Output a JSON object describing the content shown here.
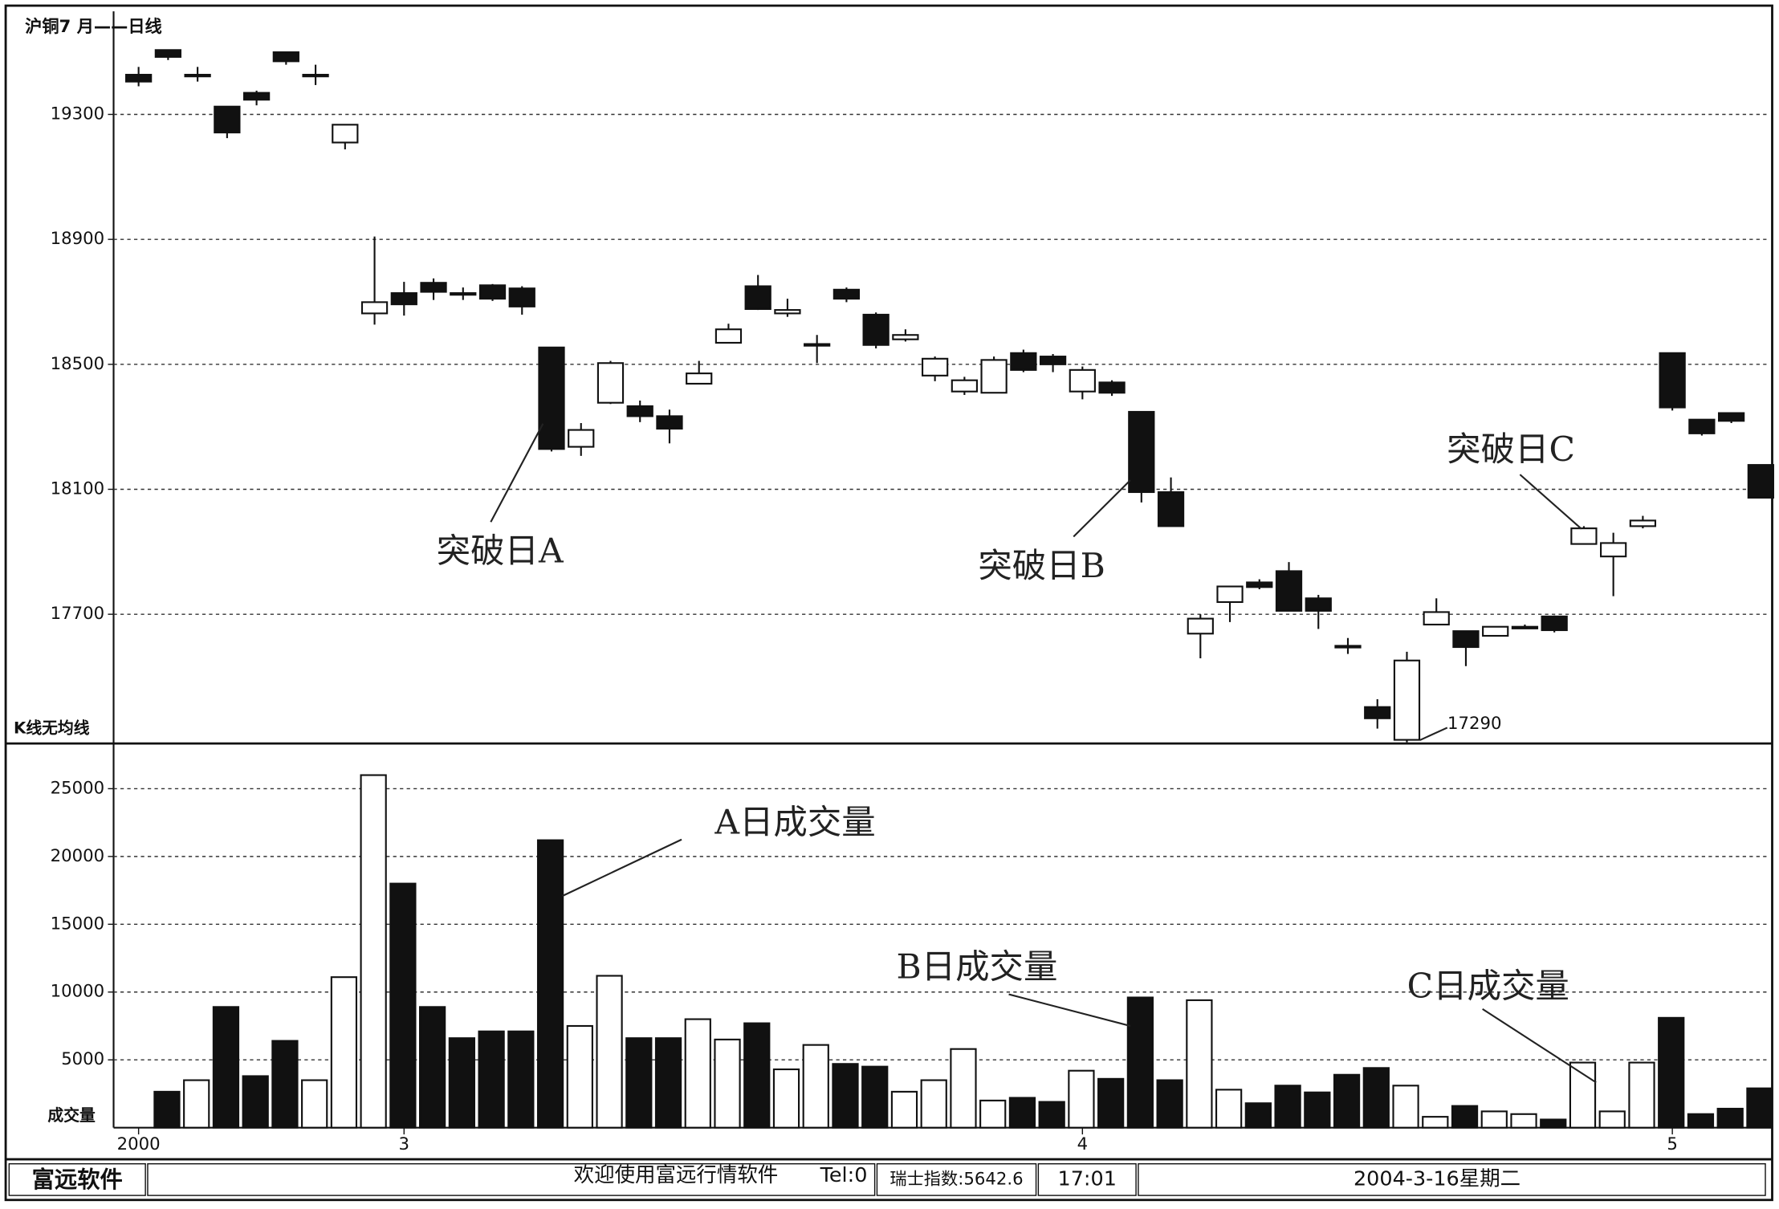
{
  "chart_data": [
    {
      "type": "candlestick",
      "title": "沪铜7 月——日线",
      "label": "K线无均线",
      "open": [
        19427,
        19506,
        19427,
        19325,
        19369,
        19499,
        19427,
        19210,
        18663,
        18728,
        18761,
        18728,
        18753,
        18743,
        18554,
        18236,
        18377,
        18366,
        18334,
        18438,
        18569,
        18750,
        18663,
        18565,
        18739,
        18659,
        18580,
        18464,
        18413,
        18409,
        18536,
        18525,
        18413,
        18442,
        18348,
        18091,
        17638,
        17739,
        17802,
        17838,
        17751,
        17599,
        17403,
        17298,
        17667,
        17646,
        17631,
        17660,
        17693,
        17925,
        17885,
        17982,
        18536,
        18323,
        18344,
        18178
      ],
      "high": [
        19452,
        19506,
        19452,
        19325,
        19376,
        19499,
        19459,
        19267,
        18909,
        18764,
        18775,
        18746,
        18757,
        18750,
        18554,
        18312,
        18511,
        18384,
        18355,
        18511,
        18630,
        18786,
        18710,
        18594,
        18746,
        18666,
        18612,
        18525,
        18460,
        18525,
        18547,
        18533,
        18493,
        18449,
        18348,
        18138,
        17700,
        17789,
        17812,
        17867,
        17762,
        17624,
        17428,
        17580,
        17751,
        17646,
        17660,
        17667,
        17696,
        17982,
        17961,
        18015,
        18536,
        18323,
        18344,
        18178
      ],
      "low": [
        19390,
        19474,
        19405,
        19224,
        19329,
        19459,
        19394,
        19188,
        18627,
        18656,
        18706,
        18706,
        18703,
        18659,
        18221,
        18207,
        18373,
        18315,
        18247,
        18438,
        18569,
        18674,
        18652,
        18504,
        18699,
        18551,
        18573,
        18446,
        18402,
        18409,
        18475,
        18475,
        18388,
        18399,
        18058,
        17982,
        17559,
        17675,
        17780,
        17711,
        17653,
        17573,
        17334,
        17290,
        17667,
        17534,
        17631,
        17653,
        17642,
        17925,
        17758,
        17975,
        18352,
        18272,
        18312,
        18073
      ],
      "close": [
        19405,
        19484,
        19427,
        19242,
        19347,
        19470,
        19427,
        19267,
        18699,
        18692,
        18732,
        18724,
        18710,
        18685,
        18229,
        18290,
        18504,
        18334,
        18294,
        18471,
        18612,
        18677,
        18674,
        18565,
        18710,
        18562,
        18594,
        18518,
        18449,
        18514,
        18482,
        18500,
        18482,
        18409,
        18091,
        17982,
        17686,
        17789,
        17787,
        17711,
        17711,
        17595,
        17367,
        17552,
        17707,
        17595,
        17660,
        17660,
        17649,
        17975,
        17928,
        18000,
        18362,
        18279,
        18319,
        18073
      ],
      "ylim": [
        17290,
        19630
      ],
      "yticks": [
        17700,
        18100,
        18500,
        18900,
        19300
      ],
      "grid": true,
      "up_color": "#ffffff",
      "down_color": "#111111",
      "annotations": [
        "突破日A",
        "突破日B",
        "突破日C",
        "17290"
      ]
    },
    {
      "type": "bar",
      "label": "成交量",
      "categories": [
        "2000",
        null,
        null,
        null,
        null,
        null,
        null,
        null,
        null,
        "3",
        null,
        null,
        null,
        null,
        null,
        null,
        null,
        null,
        null,
        null,
        null,
        null,
        null,
        null,
        null,
        null,
        null,
        null,
        null,
        null,
        null,
        null,
        "4",
        null,
        null,
        null,
        null,
        null,
        null,
        null,
        null,
        null,
        null,
        null,
        null,
        null,
        null,
        null,
        null,
        null,
        null,
        null,
        "5",
        null,
        null,
        null
      ],
      "values": [
        null,
        2650,
        3500,
        8900,
        3800,
        6400,
        3500,
        11100,
        26000,
        18000,
        8900,
        6600,
        7100,
        7100,
        21200,
        7500,
        11200,
        6600,
        6600,
        8000,
        6500,
        7700,
        4300,
        6100,
        4700,
        4500,
        2650,
        3500,
        5800,
        2000,
        2200,
        1900,
        4200,
        3600,
        9600,
        3500,
        9400,
        2800,
        1800,
        3100,
        2600,
        3900,
        4400,
        3100,
        800,
        1600,
        1200,
        1000,
        600,
        4800,
        1200,
        4800,
        8100,
        1000,
        1400,
        2900
      ],
      "ylim": [
        0,
        28000
      ],
      "yticks": [
        5000,
        10000,
        15000,
        20000,
        25000
      ],
      "grid": true,
      "annotations": [
        "A日成交量",
        "B日成交量",
        "C日成交量"
      ]
    }
  ],
  "status_bar": {
    "brand": "富远软件",
    "message": "欢迎使用富远行情软件",
    "phone": "Tel:0",
    "index": "瑞士指数:5642.6",
    "time": "17:01",
    "date": "2004-3-16星期二"
  }
}
